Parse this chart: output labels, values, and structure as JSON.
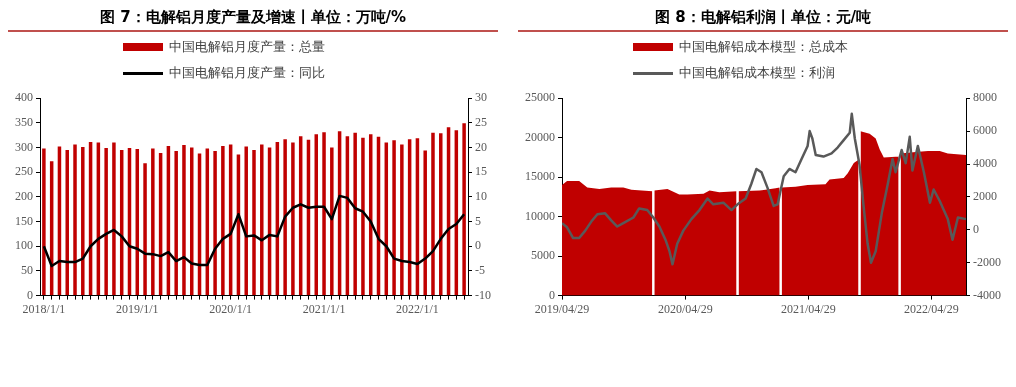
{
  "chart_data": [
    {
      "type": "bar",
      "title": "图 7：电解铝月度产量及增速丨单位：万吨/%",
      "legend": "top",
      "grid": false,
      "categories": [
        "2018/1/1",
        null,
        null,
        null,
        null,
        null,
        null,
        null,
        null,
        null,
        null,
        null,
        "2019/1/1",
        null,
        null,
        null,
        null,
        null,
        null,
        null,
        null,
        null,
        null,
        null,
        "2020/1/1",
        null,
        null,
        null,
        null,
        null,
        null,
        null,
        null,
        null,
        null,
        null,
        "2021/1/1",
        null,
        null,
        null,
        null,
        null,
        null,
        null,
        null,
        null,
        null,
        null,
        "2022/1/1",
        null,
        null,
        null,
        null,
        null,
        null
      ],
      "ylim": [
        0,
        400
      ],
      "yticks": [
        0,
        50,
        100,
        150,
        200,
        250,
        300,
        350,
        400
      ],
      "y2lim": [
        -10,
        30
      ],
      "y2ticks": [
        -10,
        -5,
        0,
        5,
        10,
        15,
        20,
        25,
        30
      ],
      "series": [
        {
          "name": "中国电解铝月度产量：总量",
          "type": "bar",
          "color": "#c00000",
          "values": [
            298,
            272,
            302,
            295,
            306,
            301,
            311,
            310,
            299,
            310,
            295,
            299,
            297,
            268,
            298,
            289,
            303,
            293,
            305,
            300,
            288,
            298,
            293,
            303,
            306,
            286,
            302,
            295,
            306,
            300,
            311,
            317,
            310,
            323,
            316,
            327,
            331,
            300,
            333,
            323,
            330,
            320,
            327,
            322,
            310,
            315,
            306,
            317,
            319,
            294,
            330,
            329,
            341,
            335,
            349
          ]
        },
        {
          "name": "中国电解铝月度产量：同比",
          "type": "line",
          "axis": "y2",
          "color": "#000000",
          "values": [
            0,
            -4,
            -3,
            -3.2,
            -3.2,
            -2.5,
            0,
            1.5,
            2.5,
            3.3,
            2,
            0,
            -0.5,
            -1.5,
            -1.6,
            -2,
            -1.2,
            -3,
            -2.2,
            -3.5,
            -3.8,
            -3.8,
            -0.5,
            1.5,
            2.5,
            6.5,
            2,
            2.2,
            1.2,
            2.3,
            2,
            6,
            7.8,
            8.5,
            7.8,
            8,
            8,
            5.5,
            10.2,
            9.8,
            7.7,
            7,
            5,
            1.5,
            0,
            -2.5,
            -3,
            -3.2,
            -3.6,
            -2.5,
            -1,
            1.5,
            3.5,
            4.5,
            6.5
          ]
        }
      ]
    },
    {
      "type": "area",
      "title": "图 8：电解铝利润丨单位：元/吨",
      "legend": "top",
      "grid": false,
      "xlim": [
        "2019-04-29",
        "2022-08-10"
      ],
      "xticks": [
        {
          "value": "2019-04-29",
          "label": "2019/04/29"
        },
        {
          "value": "2020-04-29",
          "label": "2020/04/29"
        },
        {
          "value": "2021-04-29",
          "label": "2021/04/29"
        },
        {
          "value": "2022-04-29",
          "label": "2022/04/29"
        }
      ],
      "ylim": [
        0,
        25000
      ],
      "yticks": [
        0,
        5000,
        10000,
        15000,
        20000,
        25000
      ],
      "y2lim": [
        -4000,
        8000
      ],
      "y2ticks": [
        -4000,
        -2000,
        0,
        2000,
        4000,
        6000,
        8000
      ],
      "series": [
        {
          "name": "中国电解铝成本模型：总成本",
          "type": "area",
          "color": "#c00000",
          "x": [
            "2019-04-29",
            "2019-05-14",
            "2019-06-19",
            "2019-07-13",
            "2019-08-18",
            "2019-09-22",
            "2019-10-28",
            "2019-11-21",
            "2020-01-22",
            "2020-01-25",
            "2020-01-28",
            "2020-03-07",
            "2020-04-11",
            "2020-05-05",
            "2020-06-22",
            "2020-07-10",
            "2020-08-08",
            "2020-09-28",
            "2020-10-01",
            "2020-10-04",
            "2020-12-05",
            "2021-01-22",
            "2021-02-03",
            "2021-02-06",
            "2021-02-09",
            "2021-03-22",
            "2021-04-27",
            "2021-06-19",
            "2021-07-01",
            "2021-08-12",
            "2021-08-24",
            "2021-09-11",
            "2021-09-25",
            "2021-09-28",
            "2021-10-01",
            "2021-10-28",
            "2021-11-15",
            "2021-11-27",
            "2021-12-09",
            "2022-01-13",
            "2022-01-22",
            "2022-01-25",
            "2022-01-28",
            "2022-03-14",
            "2022-04-19",
            "2022-05-24",
            "2022-06-17",
            "2022-08-10"
          ],
          "values": [
            14000,
            14500,
            14500,
            13700,
            13500,
            13700,
            13700,
            13400,
            13200,
            null,
            13300,
            13500,
            12800,
            12800,
            12900,
            13300,
            13100,
            13200,
            null,
            13200,
            13300,
            13600,
            13700,
            null,
            13700,
            13800,
            14000,
            14100,
            14700,
            14900,
            15500,
            16800,
            17200,
            null,
            20800,
            20500,
            19900,
            18500,
            17500,
            17600,
            17600,
            null,
            18000,
            18200,
            18300,
            18300,
            18000,
            17800
          ]
        },
        {
          "name": "中国电解铝成本模型：利润",
          "type": "line",
          "axis": "y2",
          "color": "#595959",
          "x": [
            "2019-04-29",
            "2019-05-14",
            "2019-06-01",
            "2019-06-19",
            "2019-07-07",
            "2019-07-25",
            "2019-08-12",
            "2019-09-04",
            "2019-09-22",
            "2019-10-10",
            "2019-10-28",
            "2019-11-27",
            "2019-12-14",
            "2020-01-07",
            "2020-01-25",
            "2020-02-12",
            "2020-03-01",
            "2020-03-13",
            "2020-03-22",
            "2020-04-05",
            "2020-04-23",
            "2020-05-17",
            "2020-06-10",
            "2020-07-04",
            "2020-07-21",
            "2020-08-20",
            "2020-09-13",
            "2020-10-01",
            "2020-10-25",
            "2020-11-11",
            "2020-11-26",
            "2020-12-11",
            "2020-12-29",
            "2021-01-16",
            "2021-01-28",
            "2021-02-15",
            "2021-03-04",
            "2021-03-22",
            "2021-04-09",
            "2021-04-27",
            "2021-05-03",
            "2021-05-11",
            "2021-05-21",
            "2021-06-13",
            "2021-07-07",
            "2021-07-25",
            "2021-08-12",
            "2021-08-30",
            "2021-09-05",
            "2021-09-14",
            "2021-09-28",
            "2021-10-10",
            "2021-10-22",
            "2021-11-01",
            "2021-11-15",
            "2021-12-03",
            "2021-12-21",
            "2022-01-04",
            "2022-01-13",
            "2022-01-31",
            "2022-02-12",
            "2022-02-24",
            "2022-03-04",
            "2022-03-20",
            "2022-04-07",
            "2022-04-25",
            "2022-05-06",
            "2022-05-24",
            "2022-06-17",
            "2022-07-01",
            "2022-07-17",
            "2022-08-10"
          ],
          "values": [
            400,
            150,
            -500,
            -500,
            -50,
            500,
            950,
            1000,
            570,
            200,
            400,
            750,
            1300,
            1200,
            750,
            200,
            -600,
            -1300,
            -2100,
            -850,
            -50,
            650,
            1200,
            1900,
            1550,
            1650,
            1200,
            1550,
            1900,
            2800,
            3700,
            3500,
            2550,
            1450,
            1550,
            3250,
            3700,
            3500,
            4300,
            5100,
            6000,
            5550,
            4550,
            4450,
            4650,
            5000,
            5450,
            5900,
            7050,
            5550,
            3950,
            1450,
            -850,
            -2000,
            -1300,
            1000,
            2800,
            4300,
            3500,
            4850,
            4050,
            5650,
            3600,
            5100,
            3500,
            1650,
            2450,
            1750,
            650,
            -600,
            750,
            650
          ]
        }
      ]
    }
  ]
}
